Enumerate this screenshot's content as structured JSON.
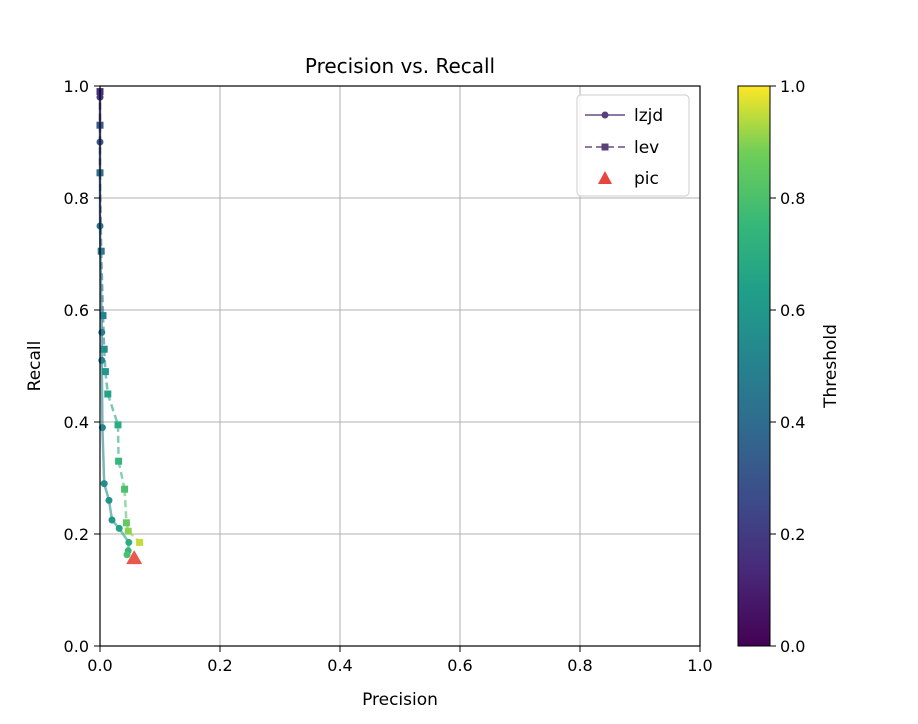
{
  "chart_data": {
    "type": "scatter",
    "title": "Precision vs. Recall",
    "xlabel": "Precision",
    "ylabel": "Recall",
    "xlim": [
      0,
      1
    ],
    "ylim": [
      0,
      1
    ],
    "xticks": [
      "0.0",
      "0.2",
      "0.4",
      "0.6",
      "0.8",
      "1.0"
    ],
    "yticks": [
      "0.0",
      "0.2",
      "0.4",
      "0.6",
      "0.8",
      "1.0"
    ],
    "grid": true,
    "legend_position": "top-right",
    "colorbar": {
      "label": "Threshold",
      "range": [
        0,
        1
      ],
      "ticks": [
        "0.0",
        "0.2",
        "0.4",
        "0.6",
        "0.8",
        "1.0"
      ],
      "colormap": "viridis"
    },
    "series": [
      {
        "name": "lzjd",
        "marker": "circle",
        "line": "solid",
        "color": "#5b3f7a",
        "x": [
          0.0,
          0.0,
          0.0,
          0.003,
          0.003,
          0.004,
          0.007,
          0.015,
          0.02,
          0.032,
          0.048,
          0.047,
          0.045
        ],
        "y": [
          0.98,
          0.9,
          0.75,
          0.56,
          0.51,
          0.39,
          0.29,
          0.26,
          0.225,
          0.21,
          0.185,
          0.17,
          0.163
        ],
        "threshold": [
          0.2,
          0.3,
          0.4,
          0.45,
          0.5,
          0.52,
          0.55,
          0.58,
          0.6,
          0.65,
          0.7,
          0.75,
          0.8
        ]
      },
      {
        "name": "lev",
        "marker": "square",
        "line": "dashed",
        "color": "#5b3f7a",
        "x": [
          0.0,
          0.0,
          0.0,
          0.002,
          0.005,
          0.007,
          0.009,
          0.013,
          0.03,
          0.031,
          0.041,
          0.044,
          0.047,
          0.066
        ],
        "y": [
          0.99,
          0.93,
          0.845,
          0.705,
          0.59,
          0.53,
          0.49,
          0.45,
          0.395,
          0.33,
          0.28,
          0.22,
          0.205,
          0.185
        ],
        "threshold": [
          0.15,
          0.3,
          0.4,
          0.45,
          0.5,
          0.55,
          0.6,
          0.65,
          0.7,
          0.75,
          0.8,
          0.85,
          0.9,
          0.95
        ]
      },
      {
        "name": "pic",
        "marker": "triangle",
        "color": "#e8453c",
        "x": [
          0.057
        ],
        "y": [
          0.157
        ]
      }
    ]
  }
}
